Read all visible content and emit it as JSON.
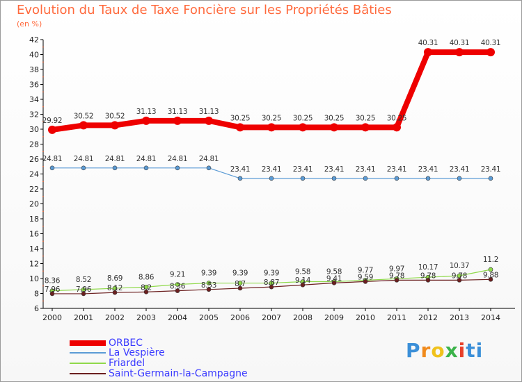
{
  "title": "Evolution du Taux de Taxe Foncière sur les Propriétés Bâties",
  "unit_label": "(en %)",
  "logo": {
    "text": "Proxiti",
    "letters": [
      "P",
      "r",
      "o",
      "x",
      "i",
      "ti"
    ]
  },
  "chart_data": {
    "type": "line",
    "title": "Evolution du Taux de Taxe Foncière sur les Propriétés Bâties",
    "ylabel": "(en %)",
    "xlabel": "",
    "ylim": [
      6,
      42
    ],
    "y_ticks": [
      6,
      8,
      10,
      12,
      14,
      16,
      18,
      20,
      22,
      24,
      26,
      28,
      30,
      32,
      34,
      36,
      38,
      40,
      42
    ],
    "grid": false,
    "legend_position": "bottom-left",
    "x": [
      "2000",
      "2001",
      "2002",
      "2003",
      "2004",
      "2005",
      "2006",
      "2007",
      "2008",
      "2009",
      "2010",
      "2011",
      "2012",
      "2013",
      "2014"
    ],
    "series": [
      {
        "name": "ORBEC",
        "color": "#ee0000",
        "values": [
          29.92,
          30.52,
          30.52,
          31.13,
          31.13,
          31.13,
          30.25,
          30.25,
          30.25,
          30.25,
          30.25,
          30.25,
          40.31,
          40.31,
          40.31
        ],
        "labels": [
          "29.92",
          "30.52",
          "30.52",
          "31.13",
          "31.13",
          "31.13",
          "30.25",
          "30.25",
          "30.25",
          "30.25",
          "30.25",
          "30.25",
          "40.31",
          "40.31",
          "40.31"
        ]
      },
      {
        "name": "La Vespière",
        "color": "#5b9bd5",
        "values": [
          24.81,
          24.81,
          24.81,
          24.81,
          24.81,
          24.81,
          23.41,
          23.41,
          23.41,
          23.41,
          23.41,
          23.41,
          23.41,
          23.41,
          23.41
        ],
        "labels": [
          "24.81",
          "24.81",
          "24.81",
          "24.81",
          "24.81",
          "24.81",
          "23.41",
          "23.41",
          "23.41",
          "23.41",
          "23.41",
          "23.41",
          "23.41",
          "23.41",
          "23.41"
        ]
      },
      {
        "name": "Friardel",
        "color": "#8fd94a",
        "values": [
          8.36,
          8.52,
          8.69,
          8.86,
          9.21,
          9.39,
          9.39,
          9.39,
          9.58,
          9.58,
          9.77,
          9.97,
          10.17,
          10.37,
          11.2
        ],
        "labels": [
          "8.36",
          "8.52",
          "8.69",
          "8.86",
          "9.21",
          "9.39",
          "9.39",
          "9.39",
          "9.58",
          "9.58",
          "9.77",
          "9.97",
          "10.17",
          "10.37",
          "11.2"
        ]
      },
      {
        "name": "Saint-Germain-la-Campagne",
        "color": "#6b1f1f",
        "values": [
          7.96,
          7.96,
          8.12,
          8.2,
          8.36,
          8.53,
          8.7,
          8.87,
          9.14,
          9.41,
          9.59,
          9.78,
          9.78,
          9.78,
          9.88
        ],
        "labels": [
          "7.96",
          "7.96",
          "8.12",
          "8.2",
          "8.36",
          "8.53",
          "8.7",
          "8.87",
          "9.14",
          "9.41",
          "9.59",
          "9.78",
          "9.78",
          "9.78",
          "9.88"
        ]
      }
    ]
  }
}
